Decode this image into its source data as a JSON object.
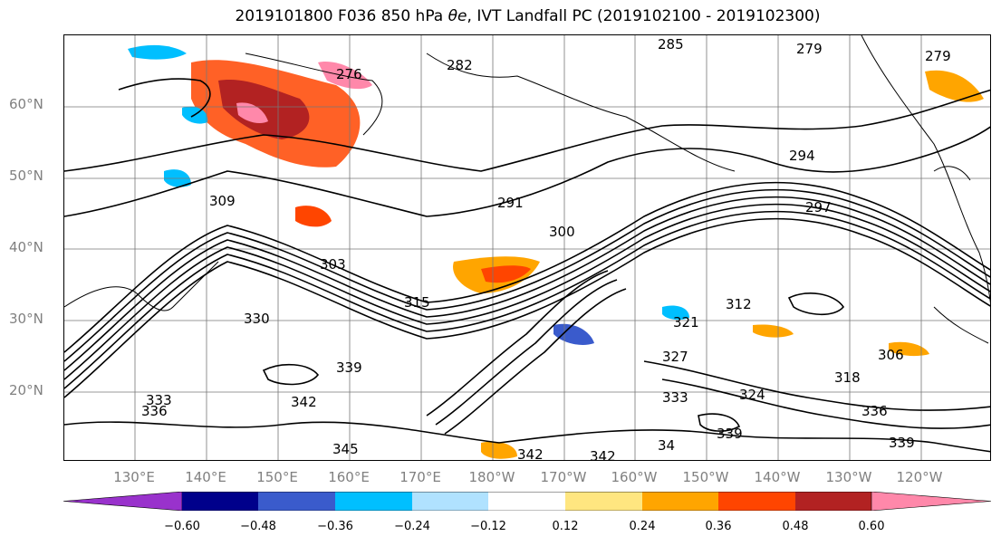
{
  "title": {
    "date": "2019101800",
    "forecast": "F036",
    "level": "850 hPa",
    "variable": "θe",
    "product": "IVT Landfall PC",
    "period": "(2019102100 - 2019102300)"
  },
  "lat_labels": [
    "60°N",
    "50°N",
    "40°N",
    "30°N",
    "20°N"
  ],
  "lon_labels": [
    "130°E",
    "140°E",
    "150°E",
    "160°E",
    "170°E",
    "180°W",
    "170°W",
    "160°W",
    "150°W",
    "140°W",
    "130°W",
    "120°W"
  ],
  "contour_labels": [
    "276",
    "282",
    "285",
    "279",
    "279",
    "291",
    "294",
    "297",
    "300",
    "303",
    "306",
    "309",
    "312",
    "315",
    "318",
    "321",
    "324",
    "327",
    "330",
    "333",
    "336",
    "339",
    "342",
    "345",
    "342",
    "342",
    "339",
    "336",
    "333",
    "339",
    "34"
  ],
  "colorbar": {
    "colors": [
      "#9932cc",
      "#00008b",
      "#3a5bcc",
      "#00bfff",
      "#b0e2ff",
      "#ffffff",
      "#ffe680",
      "#ffa500",
      "#ff4500",
      "#b22222",
      "#ff88aa"
    ],
    "ticks": [
      "−0.60",
      "−0.48",
      "−0.36",
      "−0.24",
      "−0.12",
      "0.12",
      "0.24",
      "0.36",
      "0.48",
      "0.60"
    ]
  }
}
